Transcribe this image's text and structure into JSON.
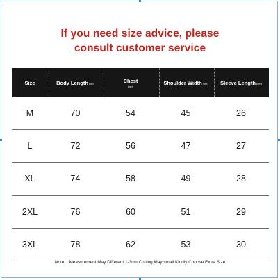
{
  "title": {
    "line1": "If you need size advice, please",
    "line2": "consult customer service"
  },
  "table": {
    "headers": [
      {
        "label": "Size",
        "unit": ""
      },
      {
        "label": "Body Length",
        "unit": "(cm)"
      },
      {
        "label": "Chest",
        "unit": "(cm)"
      },
      {
        "label": "Shoulder Width",
        "unit": "(cm)"
      },
      {
        "label": "Sleeve Length",
        "unit": "(cm)"
      }
    ],
    "rows": [
      [
        "M",
        "70",
        "54",
        "45",
        "26"
      ],
      [
        "L",
        "72",
        "56",
        "47",
        "27"
      ],
      [
        "XL",
        "74",
        "58",
        "49",
        "28"
      ],
      [
        "2XL",
        "76",
        "60",
        "51",
        "29"
      ],
      [
        "3XL",
        "78",
        "62",
        "53",
        "30"
      ]
    ]
  },
  "note": "Note :  Measurement May Different 1-3cm Cutting May small Kindly Choose Extra Size",
  "colors": {
    "title": "#c8221c",
    "header_bg": "#161616",
    "header_text": "#ffffff",
    "selection_border": "#7fb4e6"
  }
}
